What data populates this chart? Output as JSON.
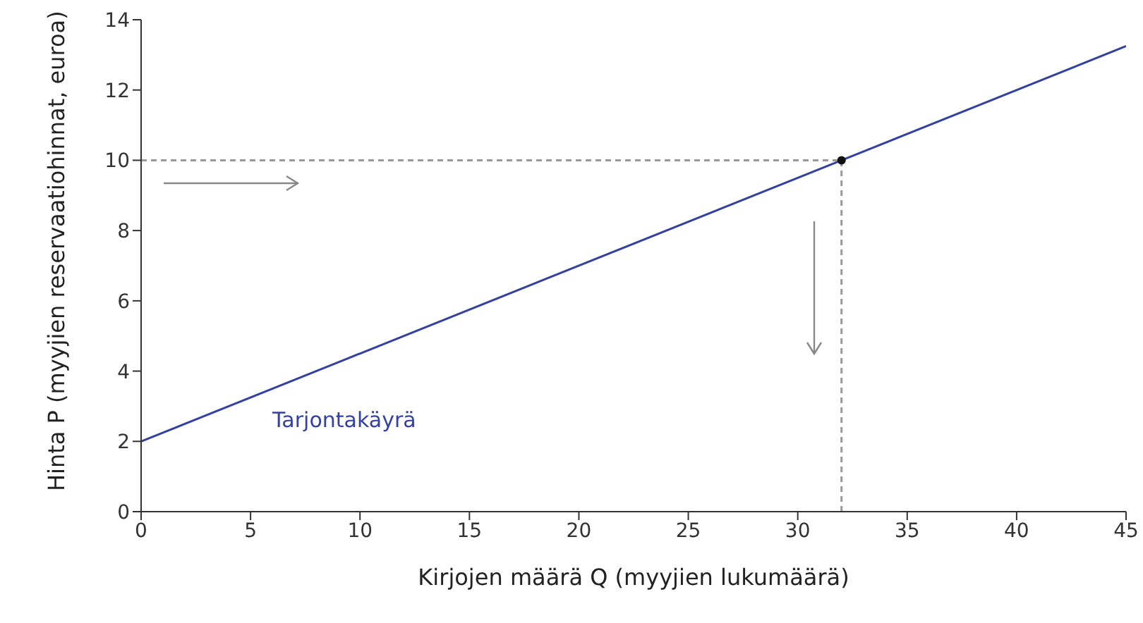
{
  "chart_data": {
    "type": "line",
    "xlabel": "Kirjojen määrä Q (myyjien lukumäärä)",
    "ylabel": "Hinta P (myyjien reservaatiohinnat, euroa)",
    "xlim": [
      0,
      45
    ],
    "xticks": [
      0,
      5,
      10,
      15,
      20,
      25,
      30,
      35,
      40,
      45
    ],
    "ylim": [
      0,
      14
    ],
    "yticks": [
      0,
      2,
      4,
      6,
      8,
      10,
      12,
      14
    ],
    "grid": false,
    "legend": false,
    "series": [
      {
        "name": "Tarjontakäyrä",
        "color": "#3341a0",
        "x": [
          0,
          45
        ],
        "values": [
          2,
          13.25
        ]
      },
      {
        "color": "#999999",
        "x": [
          0,
          32
        ],
        "values": [
          10,
          10
        ],
        "line_style": "dashed"
      },
      {
        "color": "#999999",
        "x": [
          32,
          32
        ],
        "values": [
          0,
          10
        ],
        "line_style": "dashed"
      },
      {
        "type": "scatter",
        "color": "#111111",
        "x": [
          32
        ],
        "values": [
          10
        ]
      }
    ]
  }
}
